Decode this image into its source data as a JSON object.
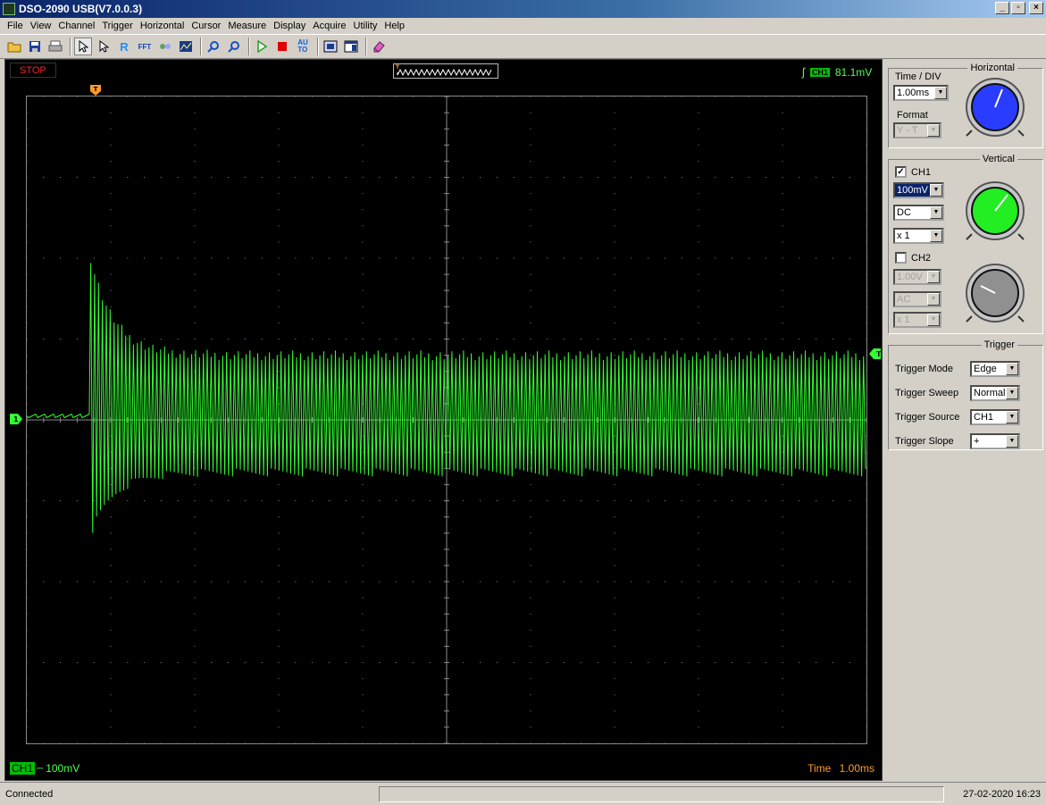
{
  "window": {
    "title": "DSO-2090 USB(V7.0.0.3)",
    "controls": [
      "_",
      "▫",
      "×"
    ]
  },
  "menu": [
    "File",
    "View",
    "Channel",
    "Trigger",
    "Horizontal",
    "Cursor",
    "Measure",
    "Display",
    "Acquire",
    "Utility",
    "Help"
  ],
  "toolbar": {
    "icons": [
      "open-icon",
      "save-icon",
      "print-icon",
      "select-pointer-icon",
      "pointer-icon",
      "ref-icon",
      "fft-icon",
      "math-icon",
      "chart-icon",
      "zoom-in-icon",
      "zoom-out-icon",
      "run-icon",
      "stop-icon",
      "auto-icon",
      "capture-icon",
      "window-icon",
      "eraser-icon"
    ],
    "auto_label": "AU\nTO",
    "ref_label": "R",
    "fft_label": "FFT"
  },
  "scope": {
    "run_state": "STOP",
    "trigger_level_readout": "81.1mV",
    "trigger_channel_tag": "CH1",
    "ch1_label": "CH1",
    "ch1_scale": "100mV",
    "time_label": "Time",
    "time_value": "1.00ms",
    "colors": {
      "trace": "#33ff33",
      "grid": "#8a8a8a",
      "stop": "#ff2020",
      "time": "#ff9a2a"
    }
  },
  "chart_data": {
    "type": "line",
    "divisions": {
      "x": 10,
      "y": 8
    },
    "x_units": "ms",
    "x_per_div": 1.0,
    "y_units": "mV",
    "y_per_div": 100,
    "trigger_position_div": 0.85,
    "trigger_level_mV": 81.1,
    "signal": {
      "baseline_mV": 5,
      "pre_trigger_end_div": 0.75,
      "spike_peak_mV": 200,
      "spike_trough_mV": -135,
      "steady_amplitude_high_mV": 80,
      "steady_amplitude_low_mV": -65,
      "approx_cycles": 200
    }
  },
  "horizontal": {
    "legend": "Horizontal",
    "time_div_label": "Time / DIV",
    "time_div_value": "1.00ms",
    "format_label": "Format",
    "format_value": "Y - T",
    "knob_color": "#2a3cff"
  },
  "vertical": {
    "legend": "Vertical",
    "ch1": {
      "label": "CH1",
      "checked": "✓",
      "volts": "100mV",
      "coupling": "DC",
      "probe": "x 1",
      "knob_color": "#22ee22"
    },
    "ch2": {
      "label": "CH2",
      "checked": "",
      "volts": "1.00V",
      "coupling": "AC",
      "probe": "x 1",
      "knob_color": "#909090"
    }
  },
  "trigger": {
    "legend": "Trigger",
    "mode_label": "Trigger Mode",
    "mode_value": "Edge",
    "sweep_label": "Trigger Sweep",
    "sweep_value": "Normal",
    "source_label": "Trigger Source",
    "source_value": "CH1",
    "slope_label": "Trigger Slope",
    "slope_value": "+"
  },
  "status": {
    "connection": "Connected",
    "datetime": "27-02-2020  16:23"
  }
}
